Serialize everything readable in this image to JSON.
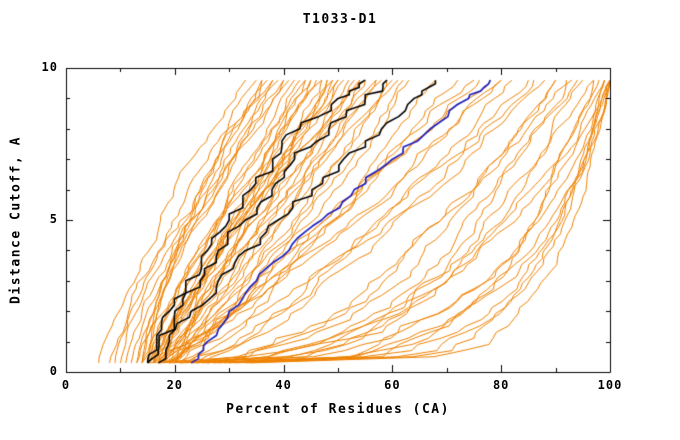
{
  "chart_data": {
    "type": "line",
    "title": "T1033-D1",
    "xlabel": "Percent of Residues (CA)",
    "ylabel": "Distance Cutoff, A",
    "xlim": [
      0,
      100
    ],
    "ylim": [
      0,
      10
    ],
    "x_major_ticks": [
      0,
      20,
      40,
      60,
      80,
      100
    ],
    "x_minor_ticks": [
      10,
      30,
      50,
      70,
      90
    ],
    "y_major_ticks": [
      0,
      5,
      10
    ],
    "y_minor_ticks": [
      1,
      2,
      3,
      4,
      6,
      7,
      8,
      9
    ],
    "grid": false,
    "legend": "none",
    "colors": {
      "background_models": "#ee8200",
      "highlight_black": "#000000",
      "highlight_blue": "#1f1fbf",
      "axis": "#000000"
    },
    "y_anchor_levels": [
      0.3,
      1,
      2,
      3,
      4,
      5,
      6,
      7,
      8,
      9,
      9.6
    ],
    "series": [
      {
        "name": "black-model-1",
        "color": "#000000",
        "width": 1.6,
        "jitter": 1.8,
        "x_at_anchors": [
          15,
          16,
          19,
          22,
          26,
          30,
          34,
          38,
          43,
          50,
          55
        ]
      },
      {
        "name": "black-model-2",
        "color": "#000000",
        "width": 1.6,
        "jitter": 1.8,
        "x_at_anchors": [
          15,
          17,
          20,
          24,
          28,
          33,
          37,
          42,
          48,
          55,
          59
        ]
      },
      {
        "name": "black-model-3",
        "color": "#000000",
        "width": 1.6,
        "jitter": 1.8,
        "x_at_anchors": [
          17,
          19,
          23,
          28,
          33,
          39,
          45,
          51,
          58,
          64,
          67
        ]
      },
      {
        "name": "blue-model",
        "color": "#1f1fbf",
        "width": 1.7,
        "jitter": 0.9,
        "x_at_anchors": [
          23,
          26,
          30,
          35,
          41,
          47,
          53,
          60,
          67,
          74,
          78
        ]
      }
    ],
    "background_curves": {
      "color": "#ee8200",
      "width": 1,
      "y_start": 0.3,
      "y_end": 9.6,
      "curves": [
        [
          6,
          33,
          1.3,
          1
        ],
        [
          8,
          36,
          1.2,
          2
        ],
        [
          9,
          38,
          1.35,
          3
        ],
        [
          10,
          35,
          1.1,
          4
        ],
        [
          11,
          40,
          1.25,
          5
        ],
        [
          12,
          37,
          1.15,
          6
        ],
        [
          13,
          38,
          1.2,
          7
        ],
        [
          13,
          42,
          1.0,
          8
        ],
        [
          14,
          40,
          1.3,
          9
        ],
        [
          14,
          44,
          1.1,
          10
        ],
        [
          14,
          48,
          0.95,
          11
        ],
        [
          15,
          41,
          1.4,
          12
        ],
        [
          15,
          45,
          1.2,
          13
        ],
        [
          15,
          50,
          1.0,
          14
        ],
        [
          15,
          55,
          0.9,
          15
        ],
        [
          16,
          43,
          1.3,
          16
        ],
        [
          16,
          47,
          1.1,
          17
        ],
        [
          16,
          52,
          1.0,
          18
        ],
        [
          16,
          58,
          0.85,
          19
        ],
        [
          17,
          45,
          1.25,
          20
        ],
        [
          17,
          49,
          1.05,
          21
        ],
        [
          17,
          54,
          0.95,
          22
        ],
        [
          17,
          60,
          0.9,
          23
        ],
        [
          18,
          46,
          1.2,
          24
        ],
        [
          18,
          51,
          1.05,
          25
        ],
        [
          18,
          57,
          0.9,
          26
        ],
        [
          18,
          62,
          0.85,
          27
        ],
        [
          19,
          48,
          1.15,
          28
        ],
        [
          19,
          53,
          1.0,
          29
        ],
        [
          19,
          59,
          0.9,
          30
        ],
        [
          20,
          50,
          1.1,
          31
        ],
        [
          20,
          55,
          1.0,
          32
        ],
        [
          20,
          63,
          0.85,
          33
        ],
        [
          20,
          68,
          0.8,
          34
        ],
        [
          16,
          72,
          0.8,
          35
        ],
        [
          17,
          75,
          0.85,
          36
        ],
        [
          18,
          78,
          0.8,
          37
        ],
        [
          19,
          80,
          0.75,
          38
        ],
        [
          20,
          76,
          0.9,
          39
        ],
        [
          21,
          82,
          0.8,
          40
        ],
        [
          22,
          85,
          0.75,
          41
        ],
        [
          23,
          80,
          0.9,
          42
        ],
        [
          24,
          86,
          0.8,
          43
        ],
        [
          25,
          88,
          0.75,
          44
        ],
        [
          15,
          97,
          0.3,
          45
        ],
        [
          17,
          99,
          0.25,
          46
        ],
        [
          19,
          100,
          0.22,
          47
        ],
        [
          21,
          98,
          0.28,
          48
        ],
        [
          23,
          100,
          0.2,
          49
        ],
        [
          25,
          99,
          0.24,
          50
        ],
        [
          27,
          100,
          0.2,
          51
        ],
        [
          29,
          100,
          0.22,
          52
        ],
        [
          31,
          99,
          0.18,
          53
        ],
        [
          33,
          100,
          0.2,
          54
        ],
        [
          34,
          100,
          0.16,
          55
        ],
        [
          30,
          97,
          0.3,
          56
        ],
        [
          22,
          90,
          0.5,
          57
        ],
        [
          24,
          92,
          0.45,
          58
        ],
        [
          26,
          94,
          0.5,
          59
        ],
        [
          28,
          95,
          0.4,
          60
        ],
        [
          26,
          90,
          0.6,
          61
        ],
        [
          21,
          93,
          0.55,
          62
        ],
        [
          14,
          36,
          1.5,
          63
        ],
        [
          15,
          39,
          1.45,
          64
        ],
        [
          16,
          49,
          1.15,
          65
        ],
        [
          17,
          57,
          0.95,
          66
        ],
        [
          18,
          44,
          1.35,
          67
        ],
        [
          19,
          61,
          0.9,
          68
        ],
        [
          15,
          47,
          1.1,
          69
        ],
        [
          16,
          54,
          1.0,
          70
        ]
      ]
    }
  }
}
